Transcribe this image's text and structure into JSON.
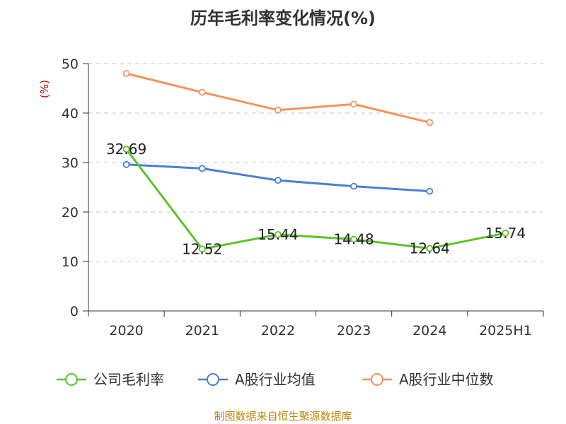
{
  "chart_data": {
    "type": "line",
    "title": "历年毛利率变化情况(%)",
    "ylabel": "(%)",
    "xlabel": "",
    "categories": [
      "2020",
      "2021",
      "2022",
      "2023",
      "2024",
      "2025H1"
    ],
    "ylim": [
      0,
      50
    ],
    "yticks": [
      0,
      10,
      20,
      30,
      40,
      50
    ],
    "grid": true,
    "legend_position": "bottom",
    "series": [
      {
        "name": "公司毛利率",
        "color": "#5cc22a",
        "values": [
          32.69,
          12.52,
          15.44,
          14.48,
          12.64,
          15.74
        ],
        "labels": [
          "32.69",
          "12.52",
          "15.44",
          "14.48",
          "12.64",
          "15.74"
        ]
      },
      {
        "name": "A股行业均值",
        "color": "#4a7fd4",
        "values": [
          29.6,
          28.8,
          26.4,
          25.2,
          24.2,
          null
        ]
      },
      {
        "name": "A股行业中位数",
        "color": "#f5935a",
        "values": [
          48.0,
          44.2,
          40.6,
          41.8,
          38.1,
          null
        ]
      }
    ]
  },
  "source": "制图数据来自恒生聚源数据库"
}
